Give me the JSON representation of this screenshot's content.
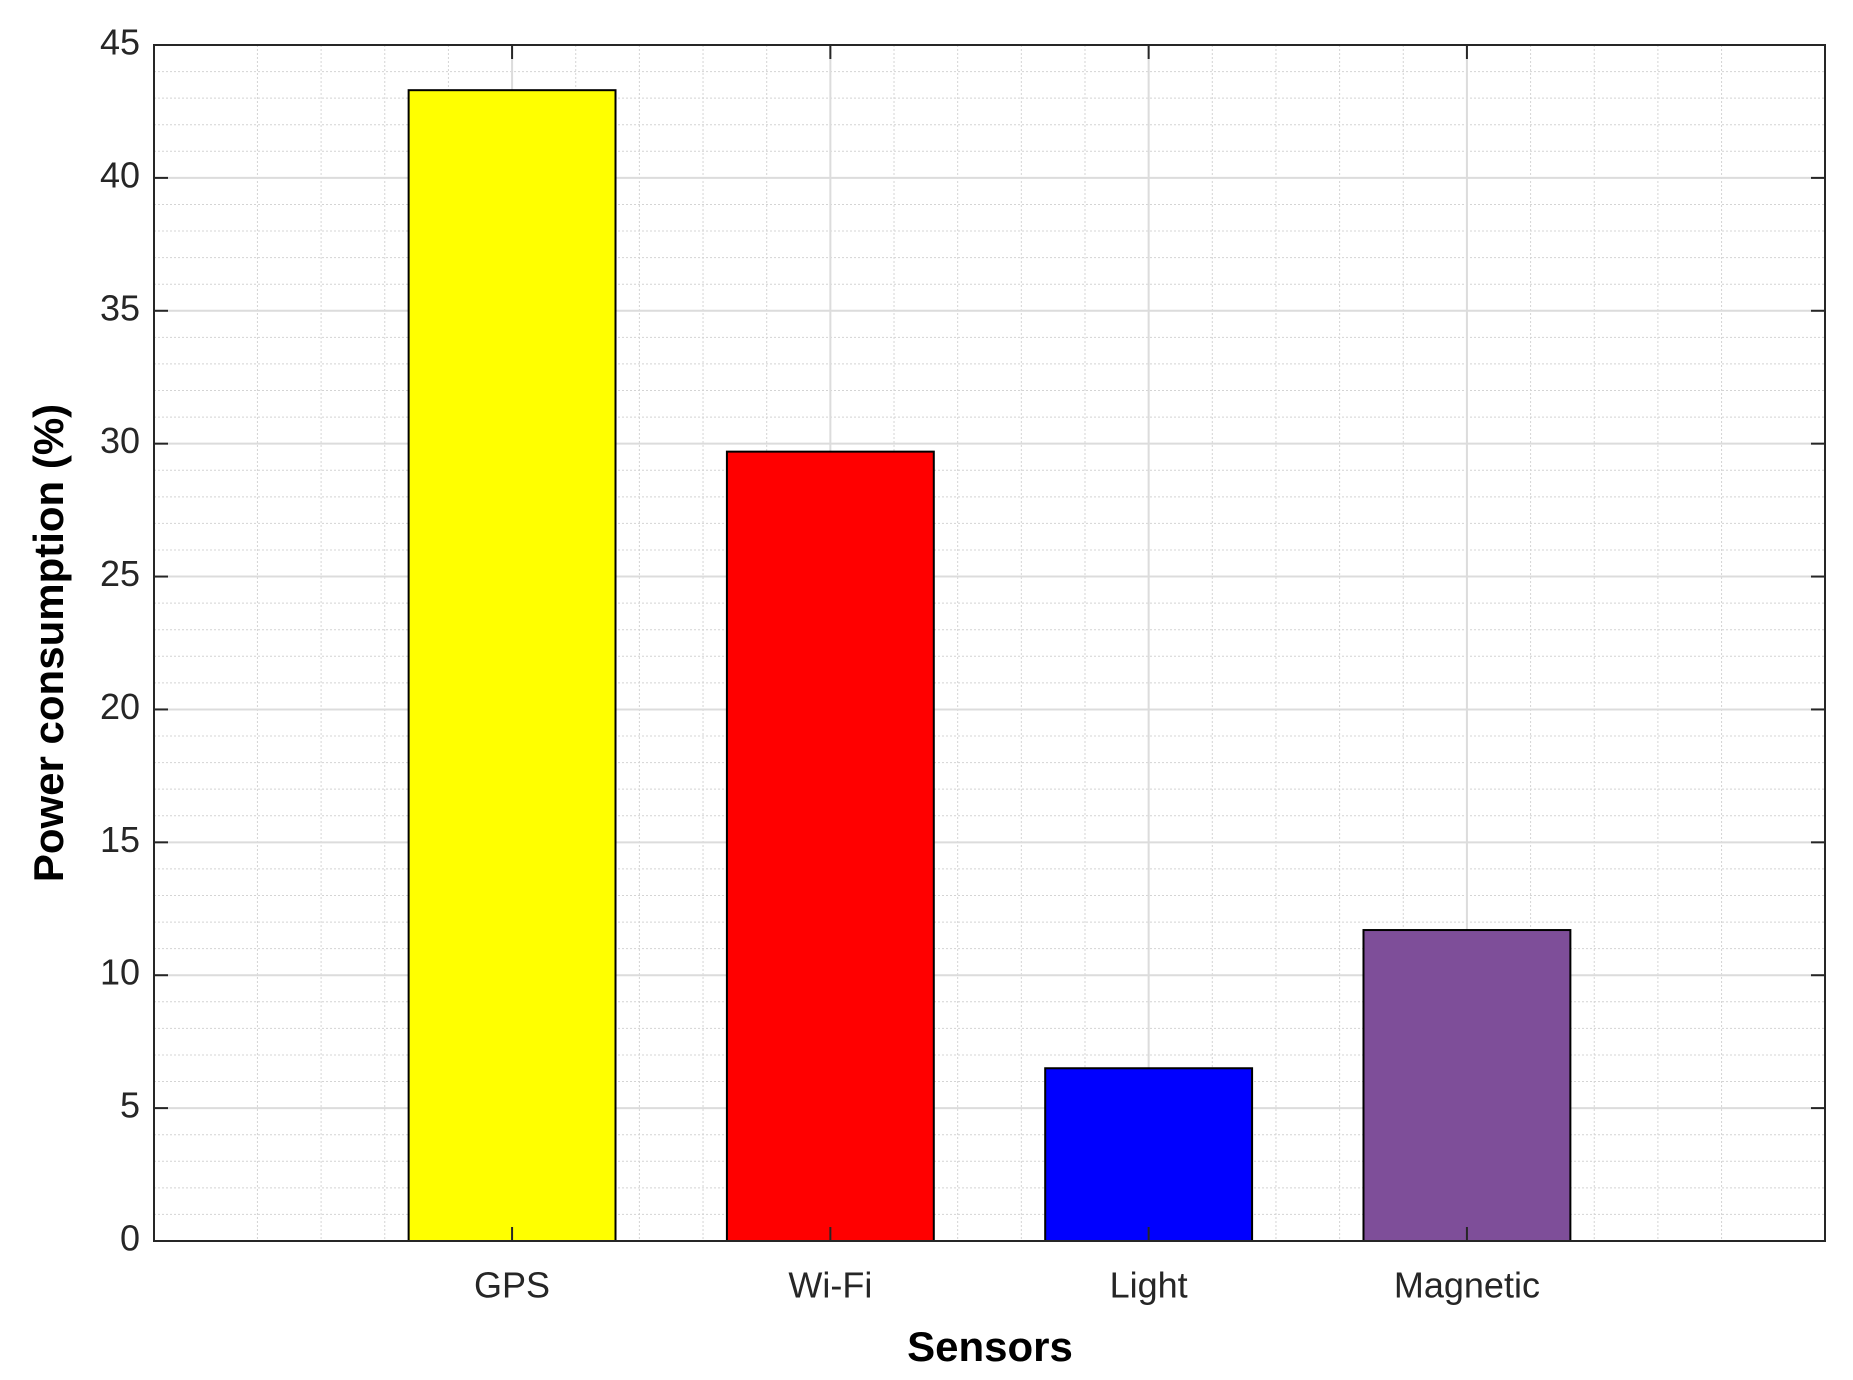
{
  "chart_data": {
    "type": "bar",
    "x_label": "Sensors",
    "y_label": "Power consumption (%)",
    "categories": [
      "GPS",
      "Wi-Fi",
      "Light",
      "Magnetic"
    ],
    "values": [
      43.3,
      29.7,
      6.5,
      11.7
    ],
    "colors": [
      "#ffff00",
      "#ff0000",
      "#0000ff",
      "#7e4e99"
    ],
    "ylim": [
      0,
      45
    ],
    "yticks": [
      0,
      5,
      10,
      15,
      20,
      25,
      30,
      35,
      40,
      45
    ],
    "grid": true,
    "minor_grid": true
  }
}
